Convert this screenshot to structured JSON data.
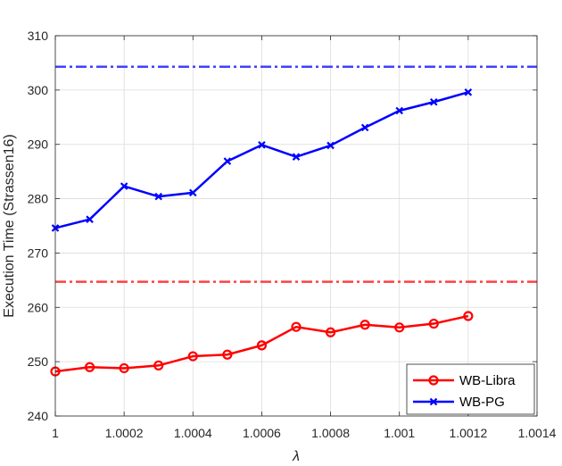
{
  "chart_data": {
    "type": "line",
    "title": "",
    "xlabel": "λ",
    "ylabel": "Execution Time (Strassen16)",
    "xlim": [
      1,
      1.0014
    ],
    "ylim": [
      240,
      310
    ],
    "x_ticks": [
      1,
      1.0002,
      1.0004,
      1.0006,
      1.0008,
      1.001,
      1.0012,
      1.0014
    ],
    "x_tick_labels": [
      "1",
      "1.0002",
      "1.0004",
      "1.0006",
      "1.0008",
      "1.001",
      "1.0012",
      "1.0014"
    ],
    "y_ticks": [
      240,
      250,
      260,
      270,
      280,
      290,
      300,
      310
    ],
    "y_tick_labels": [
      "240",
      "250",
      "260",
      "270",
      "280",
      "290",
      "300",
      "310"
    ],
    "grid": true,
    "legend_position": "bottom-right",
    "x": [
      1,
      1.0001,
      1.0002,
      1.0003,
      1.0004,
      1.0005,
      1.0006,
      1.0007,
      1.0008,
      1.0009,
      1.001,
      1.0011,
      1.0012
    ],
    "series": [
      {
        "name": "WB-Libra",
        "color": "#ff0000",
        "marker": "circle",
        "values": [
          248.2,
          249.0,
          248.8,
          249.3,
          251.0,
          251.3,
          253.0,
          256.4,
          255.4,
          256.8,
          256.3,
          257.0,
          258.4
        ]
      },
      {
        "name": "WB-PG",
        "color": "#0000ff",
        "marker": "x",
        "values": [
          274.6,
          276.2,
          282.3,
          280.4,
          281.1,
          286.9,
          289.9,
          287.7,
          289.8,
          293.1,
          296.2,
          297.8,
          299.6
        ]
      }
    ],
    "reference_lines": [
      {
        "color": "#ff4040",
        "style": "dash-dot",
        "value": 264.7
      },
      {
        "color": "#4040ff",
        "style": "dash-dot",
        "value": 304.3
      }
    ]
  }
}
